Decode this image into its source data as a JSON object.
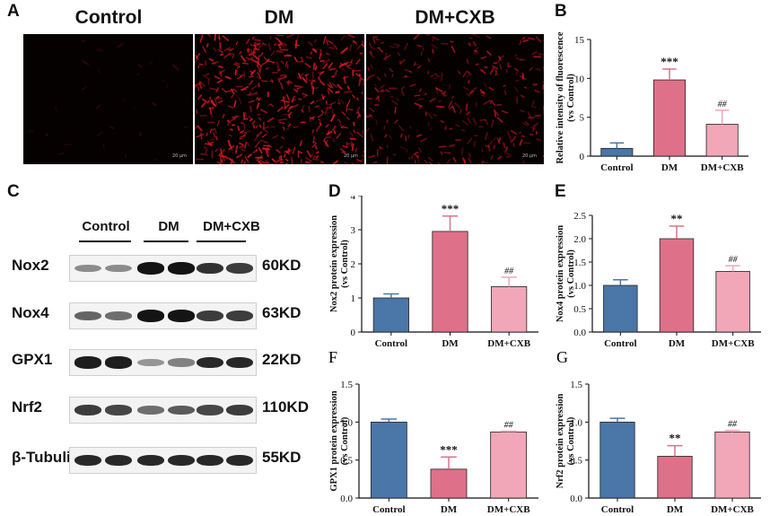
{
  "panel_letters": {
    "A": "A",
    "B": "B",
    "C": "C",
    "D": "D",
    "E": "E",
    "F": "F",
    "G": "G"
  },
  "micrographs": {
    "titles": [
      "Control",
      "DM",
      "DM+CXB"
    ],
    "scale_bar_label": "20 μm"
  },
  "western_blot": {
    "groups": [
      "Control",
      "DM",
      "DM+CXB"
    ],
    "rows": [
      {
        "protein": "Nox2",
        "size": "60KD",
        "intensities": [
          0.35,
          0.35,
          0.95,
          0.95,
          0.8,
          0.75
        ]
      },
      {
        "protein": "Nox4",
        "size": "63KD",
        "intensities": [
          0.55,
          0.5,
          0.95,
          0.95,
          0.75,
          0.75
        ]
      },
      {
        "protein": "GPX1",
        "size": "22KD",
        "intensities": [
          0.9,
          0.9,
          0.3,
          0.4,
          0.85,
          0.85
        ]
      },
      {
        "protein": "Nrf2",
        "size": "110KD",
        "intensities": [
          0.75,
          0.7,
          0.5,
          0.6,
          0.7,
          0.75
        ]
      },
      {
        "protein": "β-Tubulin",
        "size": "55KD",
        "intensities": [
          0.85,
          0.85,
          0.85,
          0.85,
          0.85,
          0.85
        ]
      }
    ]
  },
  "colors": {
    "control": "#4a76a8",
    "dm": "#de7189",
    "dmcxb": "#f1a7b7"
  },
  "chart_data": [
    {
      "id": "B",
      "type": "bar",
      "categories": [
        "Control",
        "DM",
        "DM+CXB"
      ],
      "values": [
        1.0,
        9.8,
        4.1
      ],
      "errors": [
        0.7,
        1.4,
        1.8
      ],
      "annotations": [
        "",
        "***",
        "##"
      ],
      "ylabel": "Relative intensity of fluorescence (vs Control)",
      "ylim": [
        0,
        15
      ],
      "yticks": [
        "0",
        "5",
        "10",
        "15"
      ]
    },
    {
      "id": "D",
      "type": "bar",
      "categories": [
        "Control",
        "DM",
        "DM+CXB"
      ],
      "values": [
        1.0,
        2.95,
        1.33
      ],
      "errors": [
        0.12,
        0.45,
        0.28
      ],
      "annotations": [
        "",
        "***",
        "##"
      ],
      "ylabel": "Nox2 protein expression (vs Control)",
      "ylim": [
        0,
        4
      ],
      "yticks": [
        "0",
        "1",
        "2",
        "3",
        "4"
      ]
    },
    {
      "id": "E",
      "type": "bar",
      "categories": [
        "Control",
        "DM",
        "DM+CXB"
      ],
      "values": [
        1.0,
        2.0,
        1.3
      ],
      "errors": [
        0.12,
        0.27,
        0.12
      ],
      "annotations": [
        "",
        "**",
        "##"
      ],
      "ylabel": "Nox4 protein expression (vs Control)",
      "ylim": [
        0,
        2.5
      ],
      "yticks": [
        "0.0",
        "0.5",
        "1.0",
        "1.5",
        "2.0",
        "2.5"
      ]
    },
    {
      "id": "F",
      "type": "bar",
      "categories": [
        "Control",
        "DM",
        "DM+CXB"
      ],
      "values": [
        1.0,
        0.38,
        0.87
      ],
      "errors": [
        0.04,
        0.16,
        0.01
      ],
      "annotations": [
        "",
        "***",
        "##"
      ],
      "ylabel": "GPX1 protein expression (vs Control)",
      "ylim": [
        0,
        1.5
      ],
      "yticks": [
        "0.0",
        "0.5",
        "1.0",
        "1.5"
      ]
    },
    {
      "id": "G",
      "type": "bar",
      "categories": [
        "Control",
        "DM",
        "DM+CXB"
      ],
      "values": [
        1.0,
        0.55,
        0.87
      ],
      "errors": [
        0.05,
        0.14,
        0.02
      ],
      "annotations": [
        "",
        "**",
        "##"
      ],
      "ylabel": "Nrf2 protein expression (vs Control)",
      "ylim": [
        0,
        1.5
      ],
      "yticks": [
        "0.0",
        "0.5",
        "1.0",
        "1.5"
      ]
    }
  ]
}
